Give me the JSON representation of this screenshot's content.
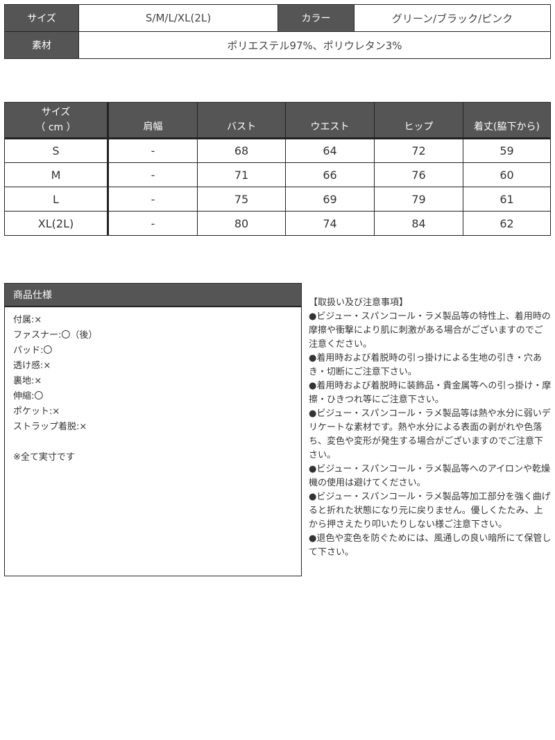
{
  "summary": {
    "size_label": "サイズ",
    "size_value": "S/M/L/XL(2L)",
    "color_label": "カラー",
    "color_value": "グリーン/ブラック/ピンク",
    "material_label": "素材",
    "material_value": "ポリエステル97%、ポリウレタン3%"
  },
  "size_table": {
    "header_size": "サイズ",
    "header_unit": "（ cm ）",
    "columns": [
      "肩幅",
      "バスト",
      "ウエスト",
      "ヒップ",
      "着丈(脇下から)"
    ],
    "rows": [
      [
        "S",
        "-",
        "68",
        "64",
        "72",
        "59"
      ],
      [
        "M",
        "-",
        "71",
        "66",
        "76",
        "60"
      ],
      [
        "L",
        "-",
        "75",
        "69",
        "79",
        "61"
      ],
      [
        "XL(2L)",
        "-",
        "80",
        "74",
        "84",
        "62"
      ]
    ]
  },
  "spec": {
    "title": "商品仕様",
    "items": [
      "付属:×",
      "ファスナー:〇（後）",
      "パッド:〇",
      "透け感:×",
      "裏地:×",
      "伸縮:〇",
      "ポケット:×",
      "ストラップ着脱:×",
      "",
      "※全て実寸です"
    ]
  },
  "notes": {
    "title": "【取扱い及び注意事項】",
    "items": [
      "●ビジュー・スパンコール・ラメ製品等の特性上、着用時の摩擦や衝撃により肌に刺激がある場合がございますのでご注意ください。",
      "●着用時および着脱時の引っ掛けによる生地の引き・穴あき・切断にご注意下さい。",
      "●着用時および着脱時に装飾品・貴金属等への引っ掛け・摩擦・ひきつれ等にご注意下さい。",
      "●ビジュー・スパンコール・ラメ製品等は熱や水分に弱いデリケートな素材です。熱や水分による表面の剥がれや色落ち、変色や変形が発生する場合がございますのでご注意下さい。",
      "●ビジュー・スパンコール・ラメ製品等へのアイロンや乾燥機の使用は避けてください。",
      "●ビジュー・スパンコール・ラメ製品等加工部分を強く曲げると折れた状態になり元に戻りません。優しくたたみ、上から押さえたり叩いたりしない様ご注意下さい。",
      "●退色や変色を防ぐためには、風通しの良い暗所にて保管して下さい。"
    ]
  }
}
